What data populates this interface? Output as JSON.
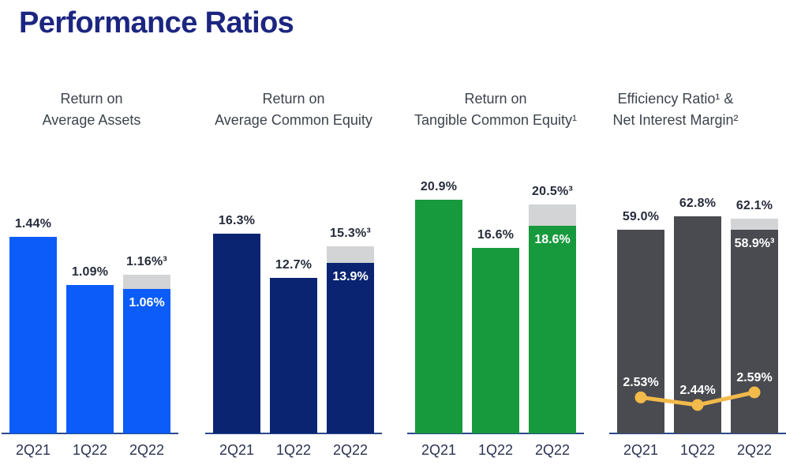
{
  "title": "Performance Ratios",
  "colors": {
    "title": "#1c2680",
    "header_text": "#3d434d",
    "value_label": "#262c3a",
    "tick_label": "#2a3353",
    "axis_line": "#2b4a8c",
    "blue": "#0b5cf8",
    "navy": "#0a2472",
    "green": "#179a3d",
    "dark_gray": "#4a4b50",
    "light_gray": "#d2d4d5",
    "gold": "#f2ba4a",
    "white": "#ffffff"
  },
  "chart_data": [
    {
      "type": "bar",
      "title_lines": [
        "Return on",
        "Average Assets"
      ],
      "categories": [
        "2Q21",
        "1Q22",
        "2Q22"
      ],
      "values": [
        1.44,
        1.09,
        1.16
      ],
      "value_labels": [
        "1.44%",
        "1.09%",
        "1.16%³"
      ],
      "bar_color_key": "blue",
      "adjusted_bar": {
        "category_index": 2,
        "adjusted_value": 1.06,
        "adjusted_label": "1.06%",
        "cap_color_key": "light_gray"
      }
    },
    {
      "type": "bar",
      "title_lines": [
        "Return on",
        "Average Common Equity"
      ],
      "categories": [
        "2Q21",
        "1Q22",
        "2Q22"
      ],
      "values": [
        16.3,
        12.7,
        15.3
      ],
      "value_labels": [
        "16.3%",
        "12.7%",
        "15.3%³"
      ],
      "bar_color_key": "navy",
      "adjusted_bar": {
        "category_index": 2,
        "adjusted_value": 13.9,
        "adjusted_label": "13.9%",
        "cap_color_key": "light_gray"
      }
    },
    {
      "type": "bar",
      "title_lines": [
        "Return on",
        "Tangible Common Equity¹"
      ],
      "categories": [
        "2Q21",
        "1Q22",
        "2Q22"
      ],
      "values": [
        20.9,
        16.6,
        20.5
      ],
      "value_labels": [
        "20.9%",
        "16.6%",
        "20.5%³"
      ],
      "bar_color_key": "green",
      "adjusted_bar": {
        "category_index": 2,
        "adjusted_value": 18.6,
        "adjusted_label": "18.6%",
        "cap_color_key": "light_gray"
      }
    },
    {
      "type": "bar+line",
      "title_lines": [
        "Efficiency Ratio¹ &",
        "Net Interest Margin²"
      ],
      "categories": [
        "2Q21",
        "1Q22",
        "2Q22"
      ],
      "values": [
        59.0,
        62.8,
        62.1
      ],
      "value_labels": [
        "59.0%",
        "62.8%",
        "62.1%"
      ],
      "bar_color_key": "dark_gray",
      "adjusted_bar": {
        "category_index": 2,
        "adjusted_value": 58.9,
        "adjusted_label": "58.9%³",
        "cap_color_key": "light_gray"
      },
      "line_series": {
        "name": "Net Interest Margin",
        "values": [
          2.53,
          2.44,
          2.59
        ],
        "point_labels": [
          "2.53%",
          "2.44%",
          "2.59%"
        ],
        "color_key": "gold"
      }
    }
  ]
}
